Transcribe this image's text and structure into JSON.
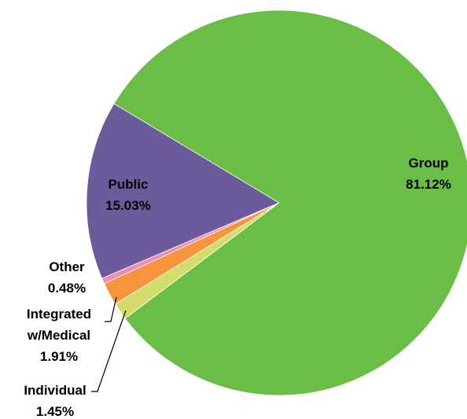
{
  "chart_data": {
    "type": "pie",
    "categories": [
      "Group",
      "Individual",
      "Integrated w/Medical",
      "Other",
      "Public"
    ],
    "values": [
      81.12,
      1.45,
      1.91,
      0.48,
      15.03
    ],
    "value_labels": [
      "81.12%",
      "1.45%",
      "1.91%",
      "0.48%",
      "15.03%"
    ],
    "colors": [
      "#6abd45",
      "#d4dd6c",
      "#f7953e",
      "#ef8cb6",
      "#6b5b9b"
    ]
  }
}
